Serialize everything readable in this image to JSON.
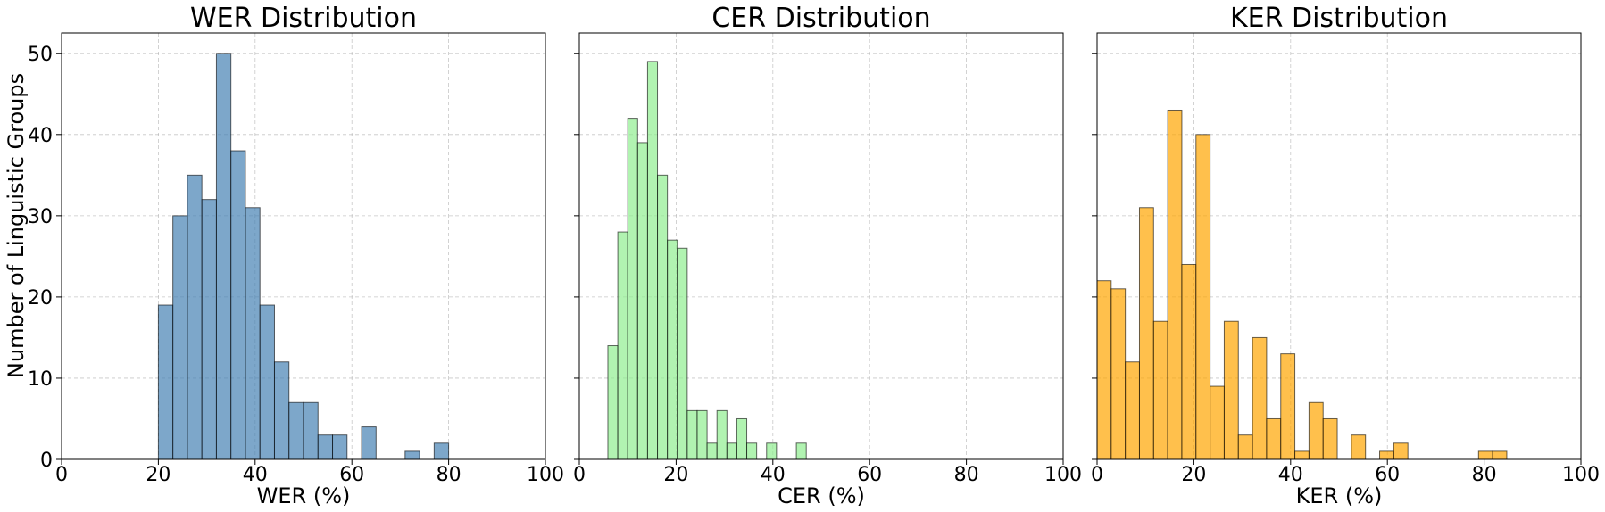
{
  "chart_data": [
    {
      "type": "bar",
      "title": "WER Distribution",
      "xlabel": "WER (%)",
      "ylabel": "Number of Linguistic Groups",
      "xlim": [
        0,
        100
      ],
      "ylim": [
        0,
        52.5
      ],
      "xticks": [
        0,
        20,
        40,
        60,
        80,
        100
      ],
      "yticks": [
        0,
        10,
        20,
        30,
        40,
        50
      ],
      "grid": true,
      "color": "#4682b4",
      "bin_width": 3.0,
      "bins": [
        {
          "x0": 20,
          "value": 19
        },
        {
          "x0": 23,
          "value": 30
        },
        {
          "x0": 26,
          "value": 35
        },
        {
          "x0": 29,
          "value": 32
        },
        {
          "x0": 32,
          "value": 50
        },
        {
          "x0": 35,
          "value": 38
        },
        {
          "x0": 38,
          "value": 31
        },
        {
          "x0": 41,
          "value": 19
        },
        {
          "x0": 44,
          "value": 12
        },
        {
          "x0": 47,
          "value": 7
        },
        {
          "x0": 50,
          "value": 7
        },
        {
          "x0": 53,
          "value": 3
        },
        {
          "x0": 56,
          "value": 3
        },
        {
          "x0": 59,
          "value": 0
        },
        {
          "x0": 62,
          "value": 4
        },
        {
          "x0": 65,
          "value": 0
        },
        {
          "x0": 68,
          "value": 0
        },
        {
          "x0": 71,
          "value": 1
        },
        {
          "x0": 74,
          "value": 0
        },
        {
          "x0": 77,
          "value": 2
        }
      ]
    },
    {
      "type": "bar",
      "title": "CER Distribution",
      "xlabel": "CER (%)",
      "xlim": [
        0,
        100
      ],
      "ylim": [
        0,
        52.5
      ],
      "xticks": [
        0,
        20,
        40,
        60,
        80,
        100
      ],
      "yticks": [
        0,
        10,
        20,
        30,
        40,
        50
      ],
      "grid": true,
      "color": "#90ee90",
      "bin_width": 2.05,
      "bins": [
        {
          "x0": 5.9,
          "value": 14
        },
        {
          "x0": 7.95,
          "value": 28
        },
        {
          "x0": 10.0,
          "value": 42
        },
        {
          "x0": 12.05,
          "value": 39
        },
        {
          "x0": 14.1,
          "value": 49
        },
        {
          "x0": 16.15,
          "value": 35
        },
        {
          "x0": 18.2,
          "value": 27
        },
        {
          "x0": 20.25,
          "value": 26
        },
        {
          "x0": 22.3,
          "value": 6
        },
        {
          "x0": 24.35,
          "value": 6
        },
        {
          "x0": 26.4,
          "value": 2
        },
        {
          "x0": 28.45,
          "value": 6
        },
        {
          "x0": 30.5,
          "value": 2
        },
        {
          "x0": 32.55,
          "value": 5
        },
        {
          "x0": 34.6,
          "value": 2
        },
        {
          "x0": 36.65,
          "value": 0
        },
        {
          "x0": 38.7,
          "value": 2
        },
        {
          "x0": 40.75,
          "value": 0
        },
        {
          "x0": 42.8,
          "value": 0
        },
        {
          "x0": 44.85,
          "value": 2
        }
      ]
    },
    {
      "type": "bar",
      "title": "KER Distribution",
      "xlabel": "KER (%)",
      "xlim": [
        0,
        100
      ],
      "ylim": [
        0,
        52.5
      ],
      "xticks": [
        0,
        20,
        40,
        60,
        80,
        100
      ],
      "yticks": [
        0,
        10,
        20,
        30,
        40,
        50
      ],
      "grid": true,
      "color": "#ffa500",
      "bin_width": 2.92,
      "bins": [
        {
          "x0": 0.0,
          "value": 22
        },
        {
          "x0": 2.92,
          "value": 21
        },
        {
          "x0": 5.84,
          "value": 12
        },
        {
          "x0": 8.76,
          "value": 31
        },
        {
          "x0": 11.68,
          "value": 17
        },
        {
          "x0": 14.6,
          "value": 43
        },
        {
          "x0": 17.52,
          "value": 24
        },
        {
          "x0": 20.44,
          "value": 40
        },
        {
          "x0": 23.36,
          "value": 9
        },
        {
          "x0": 26.28,
          "value": 17
        },
        {
          "x0": 29.2,
          "value": 3
        },
        {
          "x0": 32.12,
          "value": 15
        },
        {
          "x0": 35.04,
          "value": 5
        },
        {
          "x0": 37.96,
          "value": 13
        },
        {
          "x0": 40.88,
          "value": 1
        },
        {
          "x0": 43.8,
          "value": 7
        },
        {
          "x0": 46.72,
          "value": 5
        },
        {
          "x0": 49.64,
          "value": 0
        },
        {
          "x0": 52.56,
          "value": 3
        },
        {
          "x0": 55.48,
          "value": 0
        },
        {
          "x0": 58.4,
          "value": 1
        },
        {
          "x0": 61.32,
          "value": 2
        },
        {
          "x0": 64.24,
          "value": 0
        },
        {
          "x0": 67.16,
          "value": 0
        },
        {
          "x0": 70.08,
          "value": 0
        },
        {
          "x0": 73.0,
          "value": 0
        },
        {
          "x0": 75.92,
          "value": 0
        },
        {
          "x0": 78.84,
          "value": 1
        },
        {
          "x0": 81.76,
          "value": 1
        }
      ]
    }
  ]
}
